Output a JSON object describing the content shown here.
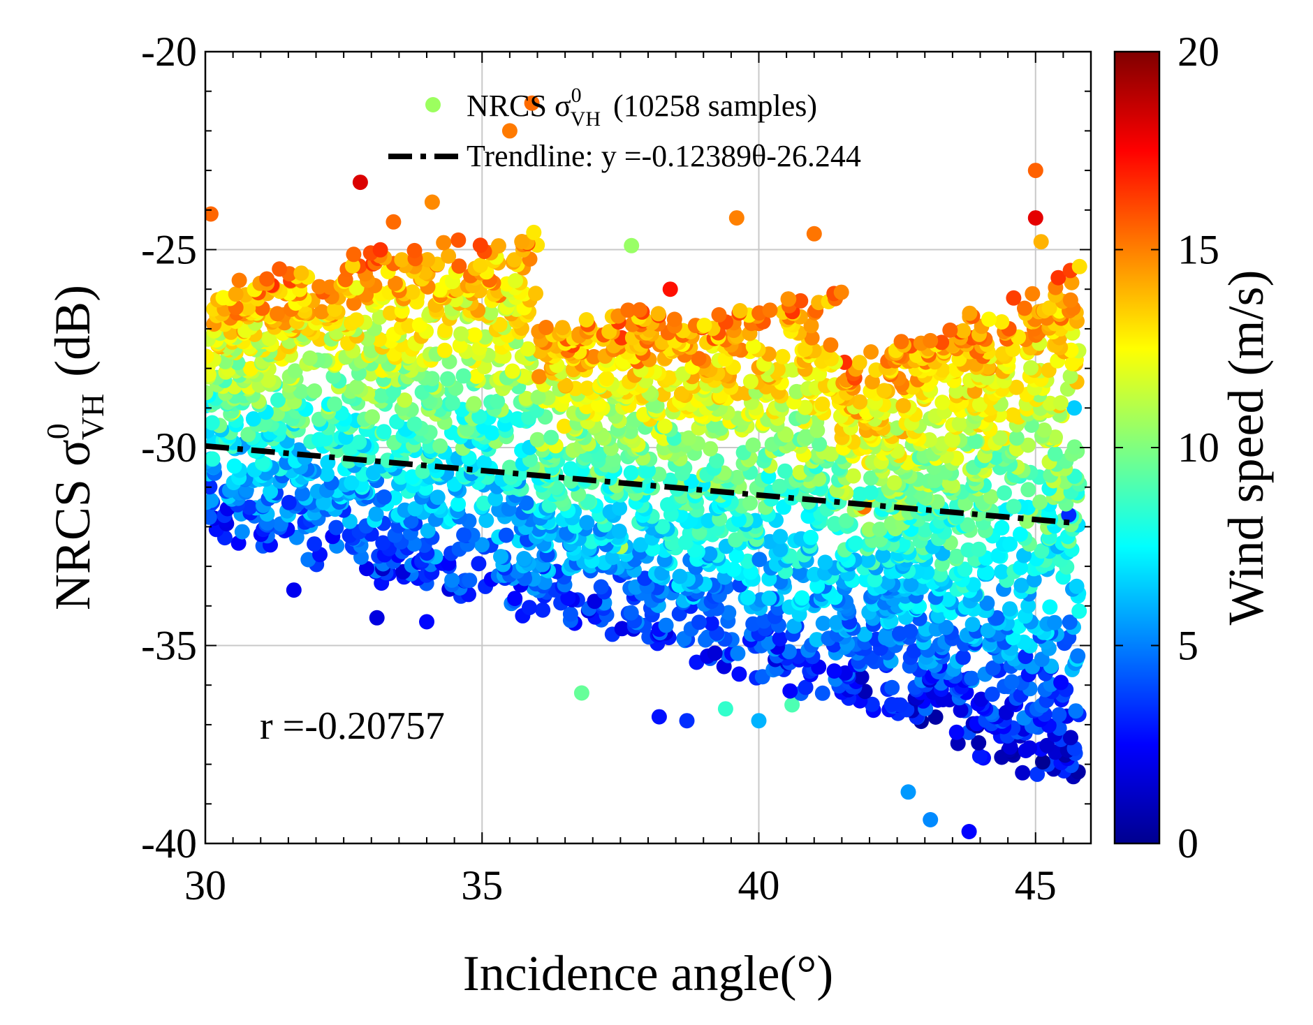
{
  "chart_data": {
    "type": "scatter",
    "title": "",
    "xlabel": "Incidence angle(°)",
    "ylabel": "NRCS σ⁰VH (dB)",
    "ylabel_main": "NRCS σ",
    "ylabel_sup": "0",
    "ylabel_sub": "VH",
    "ylabel_unit": "(dB)",
    "xlim": [
      30,
      46
    ],
    "ylim": [
      -40,
      -20
    ],
    "xticks": [
      30,
      35,
      40,
      45
    ],
    "xtick_labels": [
      "30",
      "35",
      "40",
      "45"
    ],
    "yticks": [
      -40,
      -35,
      -30,
      -25,
      -20
    ],
    "ytick_labels": [
      "-40",
      "-35",
      "-30",
      "-25",
      "-20"
    ],
    "grid": true,
    "legend": {
      "location": "top-right",
      "scatter_prefix": "NRCS σ",
      "scatter_sup": "0",
      "scatter_sub": "VH",
      "scatter_suffix": "(10258 samples)",
      "trend_label": "Trendline: y =-0.12389θ-26.244"
    },
    "trendline": {
      "slope": -0.12389,
      "intercept": -26.244,
      "x_range": [
        30,
        45.7
      ]
    },
    "annotation": "r =-0.20757",
    "sample_count": 10258,
    "colorbar": {
      "label": "Wind speed (m/s)",
      "range": [
        0,
        20
      ],
      "ticks": [
        0,
        5,
        10,
        15,
        20
      ],
      "tick_labels": [
        "0",
        "5",
        "10",
        "15",
        "20"
      ],
      "colormap": "jet"
    },
    "clusters": [
      {
        "x": [
          30.0,
          36.0
        ],
        "y_high": [
          -26.0,
          -24.5
        ],
        "y_low": [
          -32.0,
          -34.5
        ],
        "wind_high": 15,
        "wind_low": 3
      },
      {
        "x": [
          36.0,
          41.5
        ],
        "y_high": [
          -27.0,
          -26.2
        ],
        "y_low": [
          -34.0,
          -36.5
        ],
        "wind_high": 15,
        "wind_low": 3
      },
      {
        "x": [
          41.5,
          45.8
        ],
        "y_high": [
          -28.0,
          -25.5
        ],
        "y_low": [
          -36.5,
          -38.5
        ],
        "wind_high": 15,
        "wind_low": 2
      }
    ],
    "points": [
      [
        30.1,
        -24.1,
        15.5
      ],
      [
        32.8,
        -23.3,
        18.2
      ],
      [
        35.5,
        -22.0,
        15.1
      ],
      [
        35.9,
        -21.3,
        15.4
      ],
      [
        45.0,
        -23.0,
        15.6
      ],
      [
        45.0,
        -24.2,
        18.0
      ],
      [
        45.1,
        -24.8,
        14.0
      ],
      [
        37.7,
        -24.9,
        10.5
      ],
      [
        38.4,
        -26.0,
        17.2
      ],
      [
        39.6,
        -24.2,
        15.0
      ],
      [
        41.0,
        -24.6,
        15.2
      ],
      [
        33.4,
        -24.3,
        15.4
      ],
      [
        34.1,
        -23.8,
        14.8
      ],
      [
        31.2,
        -25.9,
        16.6
      ],
      [
        43.1,
        -27.3,
        15.0
      ],
      [
        30.5,
        -29.1,
        12.1
      ],
      [
        32.1,
        -29.4,
        10.5
      ],
      [
        33.6,
        -28.8,
        11.3
      ],
      [
        34.9,
        -28.2,
        12.4
      ],
      [
        36.9,
        -28.5,
        13.1
      ],
      [
        38.9,
        -28.8,
        12.6
      ],
      [
        40.3,
        -29.0,
        11.8
      ],
      [
        42.6,
        -29.6,
        14.3
      ],
      [
        44.1,
        -29.4,
        12.0
      ],
      [
        45.2,
        -28.3,
        11.5
      ],
      [
        31.5,
        -31.7,
        6.5
      ],
      [
        32.9,
        -32.2,
        5.2
      ],
      [
        34.4,
        -33.0,
        3.8
      ],
      [
        35.8,
        -31.4,
        4.7
      ],
      [
        37.6,
        -32.5,
        6.0
      ],
      [
        38.8,
        -33.4,
        5.0
      ],
      [
        40.0,
        -34.7,
        3.3
      ],
      [
        41.2,
        -32.9,
        6.4
      ],
      [
        42.6,
        -33.0,
        5.8
      ],
      [
        43.8,
        -34.8,
        4.2
      ],
      [
        45.4,
        -32.5,
        6.0
      ],
      [
        31.6,
        -33.6,
        2.2
      ],
      [
        33.1,
        -34.3,
        1.9
      ],
      [
        34.0,
        -34.4,
        2.6
      ],
      [
        38.2,
        -36.8,
        2.8
      ],
      [
        38.7,
        -36.9,
        3.4
      ],
      [
        42.7,
        -38.7,
        5.5
      ],
      [
        43.1,
        -39.4,
        5.2
      ],
      [
        43.8,
        -39.7,
        2.5
      ],
      [
        45.6,
        -34.8,
        4.0
      ],
      [
        45.7,
        -29.0,
        6.5
      ],
      [
        45.6,
        -31.7,
        3.3
      ],
      [
        36.8,
        -36.2,
        9.5
      ],
      [
        39.4,
        -36.6,
        8.5
      ],
      [
        40.6,
        -36.5,
        9.0
      ],
      [
        40.0,
        -36.9,
        6.0
      ],
      [
        37.5,
        -32.5,
        11.0
      ],
      [
        33.0,
        -30.0,
        8.0
      ],
      [
        35.5,
        -30.5,
        9.2
      ],
      [
        41.9,
        -31.5,
        15.2
      ],
      [
        42.0,
        -31.2,
        13.0
      ]
    ]
  }
}
